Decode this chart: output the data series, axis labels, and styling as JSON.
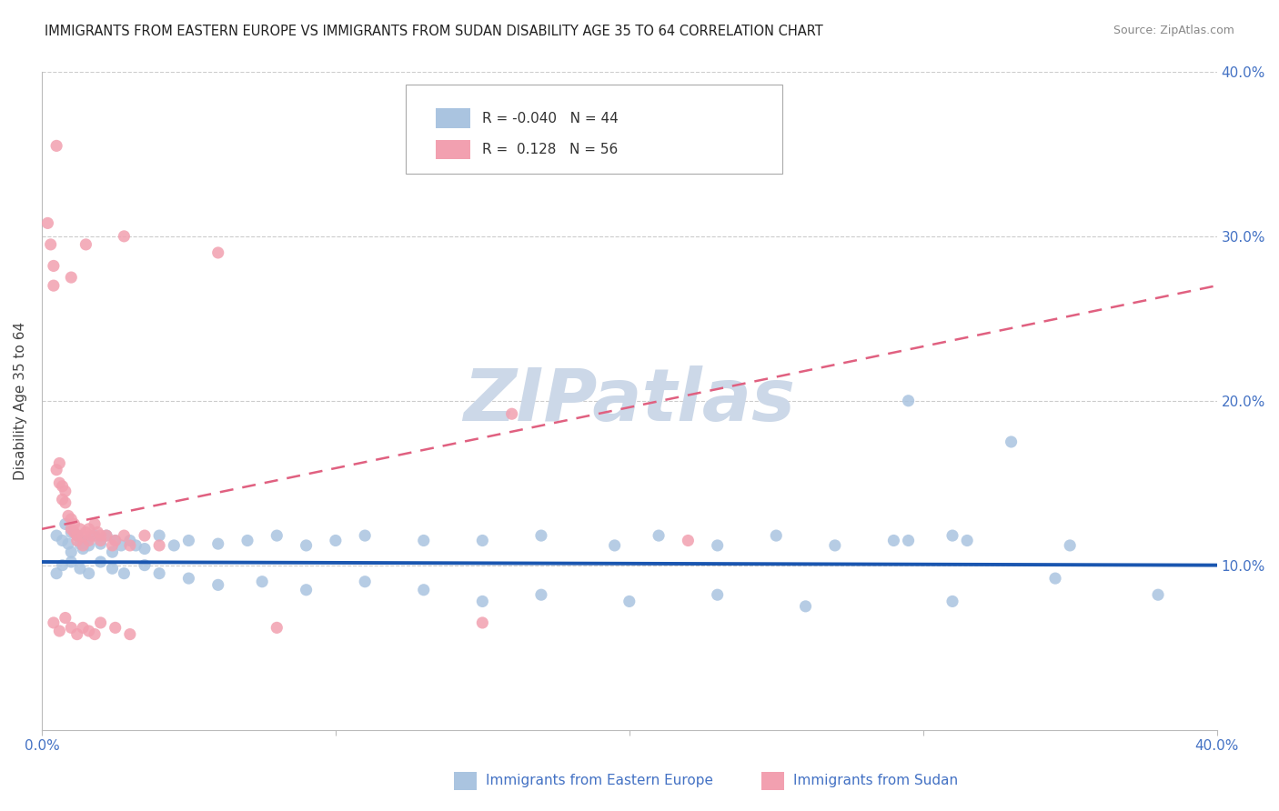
{
  "title": "IMMIGRANTS FROM EASTERN EUROPE VS IMMIGRANTS FROM SUDAN DISABILITY AGE 35 TO 64 CORRELATION CHART",
  "source": "Source: ZipAtlas.com",
  "ylabel": "Disability Age 35 to 64",
  "xlim": [
    0,
    0.4
  ],
  "ylim": [
    0,
    0.4
  ],
  "R_eastern": -0.04,
  "N_eastern": 44,
  "R_sudan": 0.128,
  "N_sudan": 56,
  "background_color": "#ffffff",
  "watermark_text": "ZIPatlas",
  "watermark_color": "#ccd8e8",
  "grid_color": "#cccccc",
  "eastern_color": "#aac4e0",
  "sudan_color": "#f2a0b0",
  "eastern_line_color": "#1a56b0",
  "sudan_line_color": "#e06080",
  "title_color": "#222222",
  "axis_label_color": "#4472c4",
  "eastern_scatter": {
    "x": [
      0.005,
      0.008,
      0.01,
      0.01,
      0.012,
      0.015,
      0.015,
      0.018,
      0.02,
      0.02,
      0.022,
      0.025,
      0.025,
      0.028,
      0.03,
      0.032,
      0.035,
      0.038,
      0.04,
      0.042,
      0.045,
      0.05,
      0.055,
      0.06,
      0.065,
      0.07,
      0.075,
      0.08,
      0.09,
      0.095,
      0.1,
      0.11,
      0.12,
      0.13,
      0.15,
      0.16,
      0.18,
      0.2,
      0.22,
      0.24,
      0.26,
      0.29,
      0.32,
      0.35
    ],
    "y": [
      0.115,
      0.12,
      0.125,
      0.11,
      0.118,
      0.113,
      0.105,
      0.112,
      0.115,
      0.108,
      0.12,
      0.112,
      0.105,
      0.118,
      0.11,
      0.108,
      0.115,
      0.105,
      0.112,
      0.108,
      0.115,
      0.11,
      0.113,
      0.108,
      0.115,
      0.112,
      0.105,
      0.11,
      0.112,
      0.108,
      0.115,
      0.112,
      0.113,
      0.108,
      0.115,
      0.112,
      0.11,
      0.108,
      0.115,
      0.112,
      0.108,
      0.113,
      0.115,
      0.11
    ]
  },
  "eastern_outliers": {
    "x": [
      0.295,
      0.32
    ],
    "y": [
      0.175,
      0.2
    ]
  },
  "eastern_low": {
    "x": [
      0.03,
      0.04,
      0.06,
      0.07,
      0.08,
      0.09,
      0.1,
      0.11,
      0.13,
      0.15,
      0.18,
      0.2,
      0.24,
      0.28,
      0.31
    ],
    "y": [
      0.085,
      0.08,
      0.088,
      0.082,
      0.078,
      0.085,
      0.08,
      0.082,
      0.078,
      0.072,
      0.068,
      0.065,
      0.062,
      0.06,
      0.058
    ]
  },
  "sudan_scatter": {
    "x": [
      0.002,
      0.003,
      0.003,
      0.004,
      0.004,
      0.005,
      0.005,
      0.005,
      0.006,
      0.006,
      0.007,
      0.007,
      0.008,
      0.008,
      0.008,
      0.009,
      0.009,
      0.01,
      0.01,
      0.01,
      0.011,
      0.011,
      0.012,
      0.012,
      0.013,
      0.013,
      0.014,
      0.015,
      0.015,
      0.016,
      0.016,
      0.017,
      0.018,
      0.018,
      0.019,
      0.02,
      0.021,
      0.022,
      0.025,
      0.028,
      0.03,
      0.035,
      0.06,
      0.08,
      0.1,
      0.12,
      0.15,
      0.16,
      0.18,
      0.2,
      0.22,
      0.24,
      0.26,
      0.28,
      0.31,
      0.34
    ],
    "y": [
      0.31,
      0.295,
      0.305,
      0.28,
      0.29,
      0.16,
      0.155,
      0.165,
      0.15,
      0.145,
      0.135,
      0.14,
      0.13,
      0.125,
      0.135,
      0.128,
      0.122,
      0.12,
      0.125,
      0.118,
      0.115,
      0.122,
      0.118,
      0.112,
      0.12,
      0.115,
      0.112,
      0.118,
      0.122,
      0.115,
      0.112,
      0.118,
      0.12,
      0.112,
      0.115,
      0.118,
      0.112,
      0.115,
      0.108,
      0.105,
      0.11,
      0.112,
      0.29,
      0.105,
      0.108,
      0.112,
      0.112,
      0.192,
      0.108,
      0.115,
      0.105,
      0.112,
      0.108,
      0.105,
      0.112,
      0.108
    ]
  },
  "sudan_high": {
    "x": [
      0.003,
      0.005,
      0.01,
      0.015,
      0.02
    ],
    "y": [
      0.355,
      0.3,
      0.265,
      0.27,
      0.175
    ]
  },
  "sudan_low": {
    "x": [
      0.012,
      0.015,
      0.018,
      0.022,
      0.025,
      0.03,
      0.035,
      0.04,
      0.05,
      0.06,
      0.07,
      0.08,
      0.09,
      0.1,
      0.12,
      0.15
    ],
    "y": [
      0.068,
      0.06,
      0.065,
      0.058,
      0.062,
      0.06,
      0.055,
      0.065,
      0.058,
      0.055,
      0.058,
      0.052,
      0.055,
      0.058,
      0.065,
      0.062
    ]
  }
}
